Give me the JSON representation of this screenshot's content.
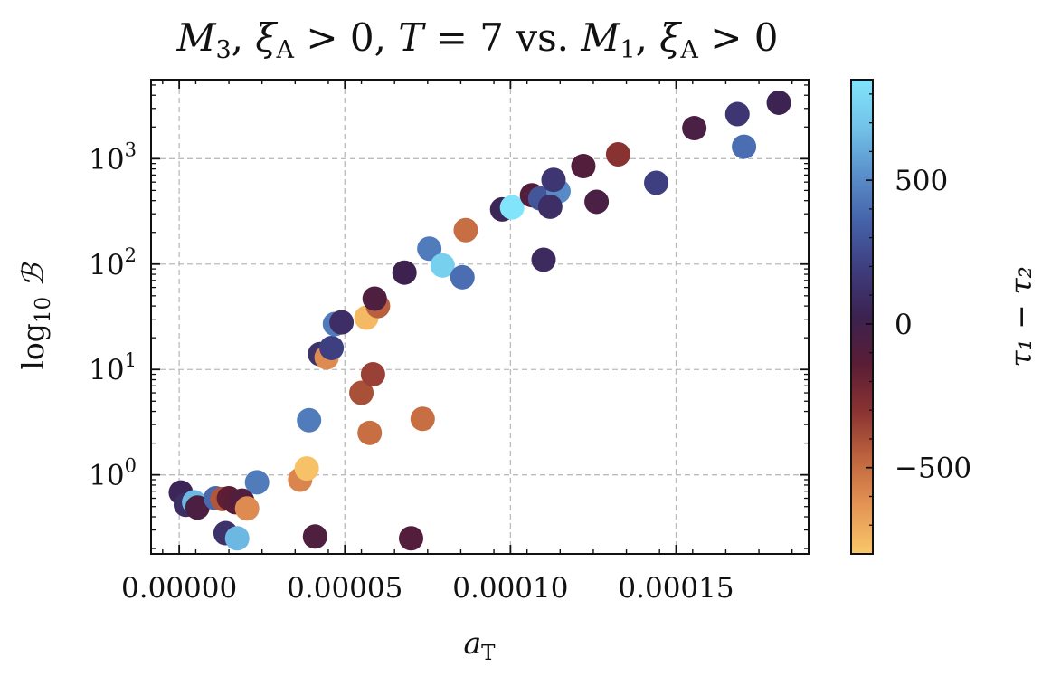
{
  "chart_data": {
    "type": "scatter",
    "title": "M₃, ξA > 0, T = 7 vs. M₁, ξA > 0",
    "title_parts": {
      "m3": "M",
      "m3_sub": "3",
      "xi": "ξ",
      "xi_sub": "A",
      "gt0": "> 0,",
      "T": "T",
      "eq7": "= 7",
      "vs": "vs.",
      "m1": "M",
      "m1_sub": "1",
      "gt0b": "> 0"
    },
    "xlabel": "a",
    "xlabel_sub": "T",
    "ylabel": "log",
    "ylabel_sub": "10",
    "ylabel_sym": "ℬ",
    "xlim": [
      -8.5e-06,
      0.00019
    ],
    "ylim_log10": [
      -0.75,
      3.75
    ],
    "yscale": "log",
    "grid": true,
    "x_ticks": [
      {
        "value": 0.0,
        "label": "0.00000"
      },
      {
        "value": 5e-05,
        "label": "0.00005"
      },
      {
        "value": 0.0001,
        "label": "0.00010"
      },
      {
        "value": 0.00015,
        "label": "0.00015"
      }
    ],
    "y_ticks": [
      {
        "exp": 0,
        "base": "10",
        "sup": "0"
      },
      {
        "exp": 1,
        "base": "10",
        "sup": "1"
      },
      {
        "exp": 2,
        "base": "10",
        "sup": "2"
      },
      {
        "exp": 3,
        "base": "10",
        "sup": "3"
      }
    ],
    "colorbar": {
      "label": "τ₁ − τ₂",
      "min": -800,
      "max": 850,
      "ticks": [
        {
          "value": 500,
          "label": "500"
        },
        {
          "value": 0,
          "label": "0"
        },
        {
          "value": -500,
          "label": "−500"
        }
      ],
      "colormap": [
        "#f9c86a",
        "#e59554",
        "#c0653f",
        "#8a3332",
        "#5a1d35",
        "#3c2250",
        "#3e3d7e",
        "#4562a8",
        "#5a8fcb",
        "#72c3e8",
        "#81e4fb"
      ]
    },
    "points": [
      {
        "x": 5e-07,
        "y": 0.68,
        "c": 50
      },
      {
        "x": 2e-06,
        "y": 0.52,
        "c": 100
      },
      {
        "x": 4.5e-06,
        "y": 0.55,
        "c": 650
      },
      {
        "x": 5.5e-06,
        "y": 0.49,
        "c": -60
      },
      {
        "x": 1.1e-05,
        "y": 0.6,
        "c": 380
      },
      {
        "x": 1.3e-05,
        "y": 0.59,
        "c": -420
      },
      {
        "x": 1.4e-05,
        "y": 0.28,
        "c": 120
      },
      {
        "x": 1.5e-05,
        "y": 0.6,
        "c": -150
      },
      {
        "x": 1.7e-05,
        "y": 0.55,
        "c": -130
      },
      {
        "x": 1.75e-05,
        "y": 0.25,
        "c": 650
      },
      {
        "x": 1.9e-05,
        "y": 0.57,
        "c": -90
      },
      {
        "x": 2.05e-05,
        "y": 0.48,
        "c": -600
      },
      {
        "x": 2.35e-05,
        "y": 0.85,
        "c": 450
      },
      {
        "x": 3.65e-05,
        "y": 0.9,
        "c": -580
      },
      {
        "x": 3.85e-05,
        "y": 1.15,
        "c": -780
      },
      {
        "x": 3.92e-05,
        "y": 3.3,
        "c": 450
      },
      {
        "x": 4.1e-05,
        "y": 0.26,
        "c": -80
      },
      {
        "x": 4.25e-05,
        "y": 14,
        "c": 120
      },
      {
        "x": 4.45e-05,
        "y": 13,
        "c": -600
      },
      {
        "x": 4.6e-05,
        "y": 16,
        "c": 200
      },
      {
        "x": 4.7e-05,
        "y": 27,
        "c": 450
      },
      {
        "x": 4.9e-05,
        "y": 28,
        "c": 100
      },
      {
        "x": 5.5e-05,
        "y": 6,
        "c": -400
      },
      {
        "x": 5.65e-05,
        "y": 31,
        "c": -750
      },
      {
        "x": 5.75e-05,
        "y": 2.5,
        "c": -500
      },
      {
        "x": 5.85e-05,
        "y": 9,
        "c": -350
      },
      {
        "x": 6e-05,
        "y": 40,
        "c": -450
      },
      {
        "x": 5.9e-05,
        "y": 47,
        "c": -80
      },
      {
        "x": 6.8e-05,
        "y": 83,
        "c": 20
      },
      {
        "x": 7e-05,
        "y": 0.25,
        "c": -100
      },
      {
        "x": 7.35e-05,
        "y": 3.4,
        "c": -500
      },
      {
        "x": 7.55e-05,
        "y": 140,
        "c": 450
      },
      {
        "x": 7.95e-05,
        "y": 97,
        "c": 750
      },
      {
        "x": 8.55e-05,
        "y": 75,
        "c": 400
      },
      {
        "x": 8.65e-05,
        "y": 210,
        "c": -500
      },
      {
        "x": 9.75e-05,
        "y": 330,
        "c": 50
      },
      {
        "x": 0.0001005,
        "y": 345,
        "c": 850
      },
      {
        "x": 0.0001065,
        "y": 450,
        "c": -100
      },
      {
        "x": 0.000109,
        "y": 420,
        "c": 300
      },
      {
        "x": 0.00011,
        "y": 110,
        "c": 80
      },
      {
        "x": 0.0001145,
        "y": 490,
        "c": 500
      },
      {
        "x": 0.000112,
        "y": 350,
        "c": 100
      },
      {
        "x": 0.000113,
        "y": 630,
        "c": 150
      },
      {
        "x": 0.000122,
        "y": 850,
        "c": -100
      },
      {
        "x": 0.000126,
        "y": 390,
        "c": -50
      },
      {
        "x": 0.0001325,
        "y": 1100,
        "c": -300
      },
      {
        "x": 0.000144,
        "y": 590,
        "c": 200
      },
      {
        "x": 0.0001555,
        "y": 1950,
        "c": -50
      },
      {
        "x": 0.0001685,
        "y": 2650,
        "c": 150
      },
      {
        "x": 0.0001705,
        "y": 1300,
        "c": 400
      },
      {
        "x": 0.000181,
        "y": 3400,
        "c": 30
      }
    ]
  }
}
